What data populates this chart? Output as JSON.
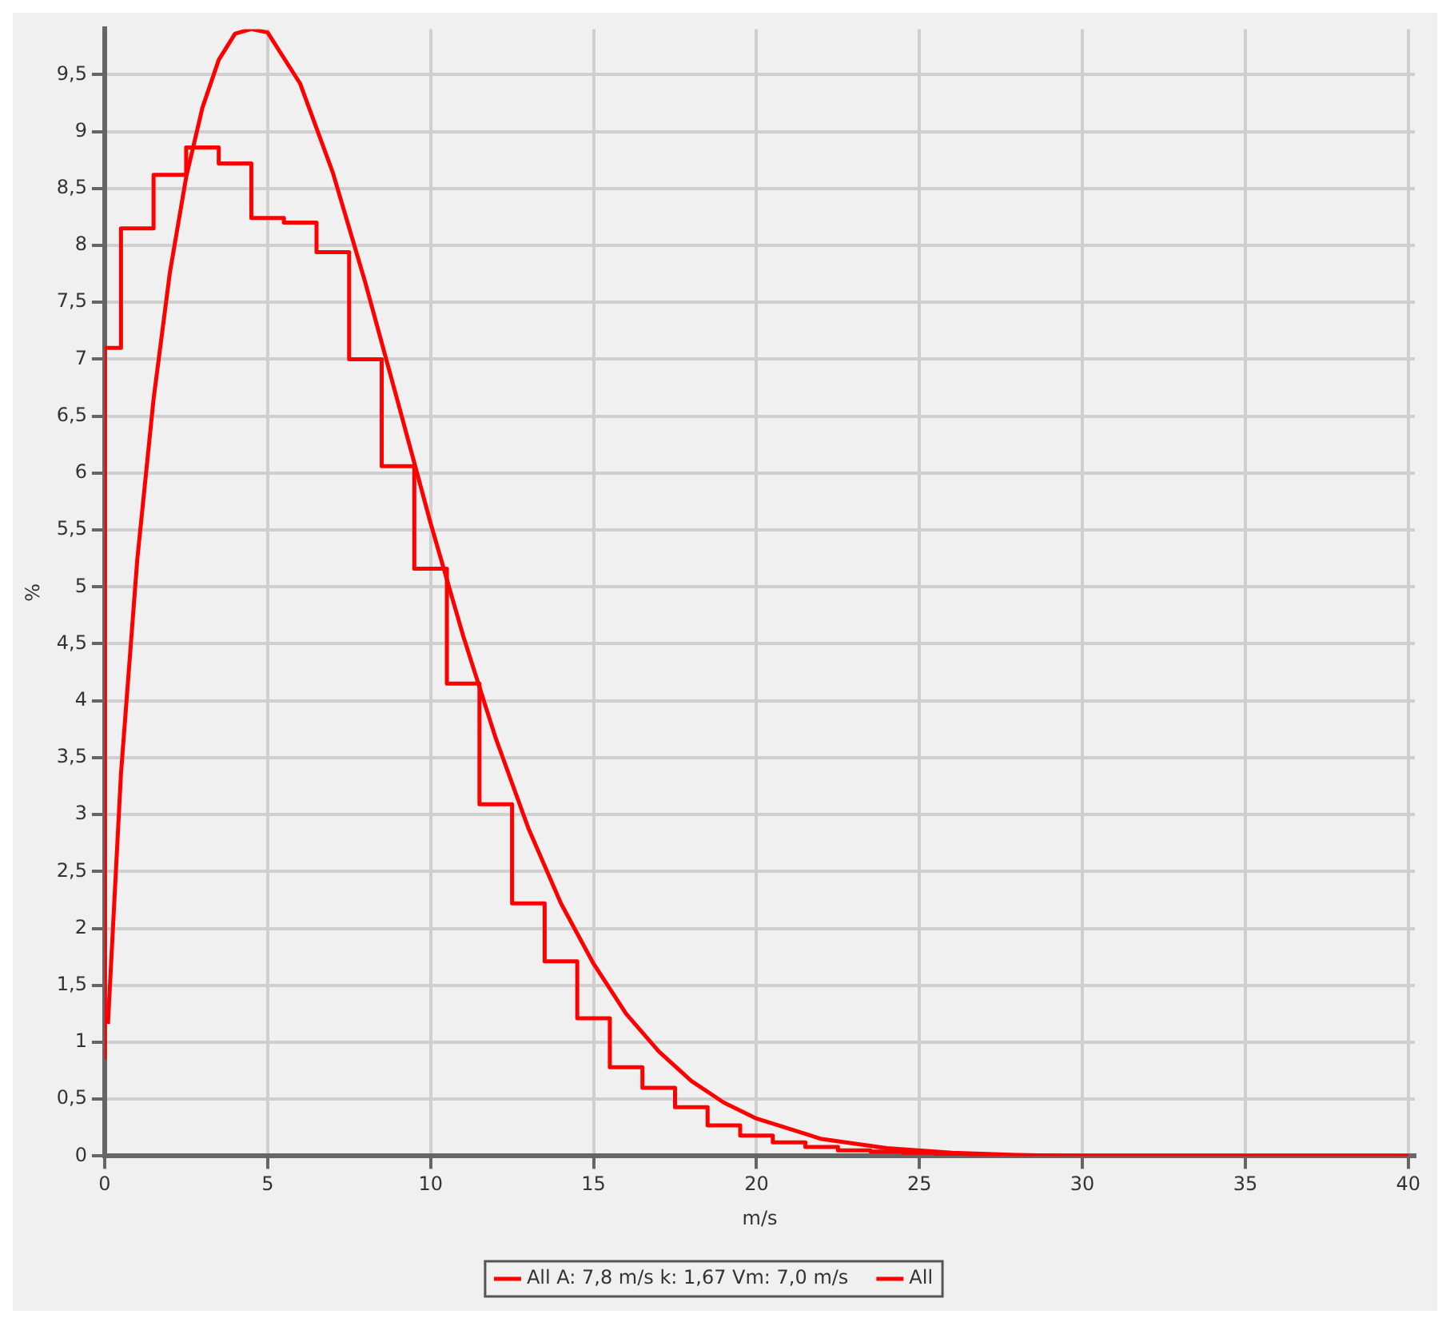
{
  "chart_data": {
    "type": "line",
    "xlabel": "m/s",
    "ylabel": "%",
    "xlim": [
      0,
      40.2
    ],
    "ylim": [
      0,
      9.9
    ],
    "xticks": [
      0,
      5,
      10,
      15,
      20,
      25,
      30,
      35,
      40
    ],
    "yticks": [
      0,
      {
        "value": 0.5,
        "label": "0,5"
      },
      1,
      {
        "value": 1.5,
        "label": "1,5"
      },
      2,
      {
        "value": 2.5,
        "label": "2,5"
      },
      3,
      {
        "value": 3.5,
        "label": "3,5"
      },
      4,
      {
        "value": 4.5,
        "label": "4,5"
      },
      5,
      {
        "value": 5.5,
        "label": "5,5"
      },
      6,
      {
        "value": 6.5,
        "label": "6,5"
      },
      7,
      {
        "value": 7.5,
        "label": "7,5"
      },
      8,
      {
        "value": 8.5,
        "label": "8,5"
      },
      9,
      {
        "value": 9.5,
        "label": "9,5"
      }
    ],
    "grid": true,
    "legend": "bottom",
    "marker": "none",
    "series": [
      {
        "name": "All A: 7,8 m/s k: 1,67 Vm: 7,0 m/s",
        "type": "line",
        "color": "#ff0000",
        "x": [
          0.1,
          0.5,
          1,
          1.5,
          2,
          2.5,
          3,
          3.5,
          4,
          4.5,
          5,
          6,
          7,
          8,
          9,
          10,
          11,
          12,
          13,
          14,
          15,
          16,
          17,
          18,
          19,
          20,
          22,
          24,
          26,
          28,
          30,
          40
        ],
        "values": [
          1.16,
          3.36,
          5.24,
          6.65,
          7.76,
          8.6,
          9.21,
          9.63,
          9.86,
          9.9,
          9.87,
          9.42,
          8.64,
          7.67,
          6.62,
          5.56,
          4.57,
          3.67,
          2.88,
          2.22,
          1.69,
          1.25,
          0.92,
          0.66,
          0.47,
          0.33,
          0.15,
          0.07,
          0.03,
          0.01,
          0,
          0
        ]
      },
      {
        "name": "All",
        "type": "step",
        "color": "#ff0000",
        "x": [
          0,
          0.5,
          1.5,
          2.5,
          3.5,
          4.5,
          5.5,
          6.5,
          7.5,
          8.5,
          9.5,
          10.5,
          11.5,
          12.5,
          13.5,
          14.5,
          15.5,
          16.5,
          17.5,
          18.5,
          19.5,
          20.5,
          21.5,
          22.5,
          23.5,
          24.5,
          25.5,
          26.5,
          27.5
        ],
        "values": [
          0.85,
          7.1,
          8.15,
          8.62,
          8.86,
          8.72,
          8.24,
          8.2,
          7.94,
          7.0,
          6.06,
          5.16,
          4.15,
          3.09,
          2.22,
          1.71,
          1.21,
          0.78,
          0.6,
          0.43,
          0.27,
          0.18,
          0.12,
          0.08,
          0.05,
          0.04,
          0.03,
          0.02,
          0.01
        ]
      }
    ]
  }
}
